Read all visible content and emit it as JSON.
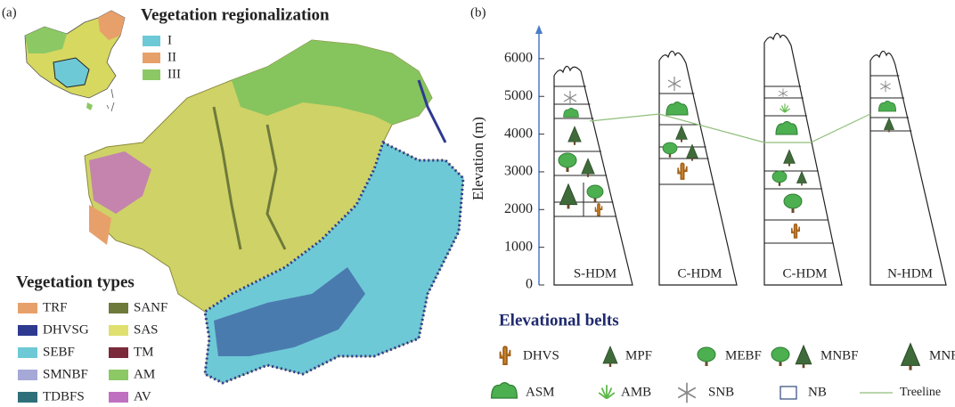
{
  "panel_a": {
    "label": "(a)",
    "regionalization": {
      "title": "Vegetation regionalization",
      "items": [
        {
          "name": "I",
          "color": "#6ec9d6"
        },
        {
          "name": "II",
          "color": "#e8a06a"
        },
        {
          "name": "III",
          "color": "#8cc864"
        }
      ]
    },
    "vegetation_types": {
      "title": "Vegetation types",
      "items": [
        {
          "name": "TRF",
          "color": "#e8a06a"
        },
        {
          "name": "DHVSG",
          "color": "#2e3a8f"
        },
        {
          "name": "SEBF",
          "color": "#6ec9d6"
        },
        {
          "name": "SMNBF",
          "color": "#a6a8d8"
        },
        {
          "name": "TDBFS",
          "color": "#2f6f7a"
        },
        {
          "name": "SANF",
          "color": "#6e7a3a"
        },
        {
          "name": "SAS",
          "color": "#e0e070"
        },
        {
          "name": "TM",
          "color": "#7a2a3a"
        },
        {
          "name": "AM",
          "color": "#8cc864"
        },
        {
          "name": "AV",
          "color": "#c070c0"
        }
      ]
    }
  },
  "panel_b": {
    "label": "(b)",
    "y_axis": {
      "label": "Elevation (m)",
      "ylim": [
        0,
        6800
      ],
      "yticks": [
        0,
        1000,
        2000,
        3000,
        4000,
        5000,
        6000
      ]
    },
    "columns": [
      "S-HDM",
      "C-HDM",
      "C-HDM",
      "N-HDM"
    ],
    "legend": {
      "title": "Elevational belts",
      "items": [
        "DHVS",
        "MPF",
        "MEBF",
        "MNBF",
        "MNF",
        "ASM",
        "AMB",
        "SNB",
        "NB",
        "Treeline"
      ]
    }
  }
}
